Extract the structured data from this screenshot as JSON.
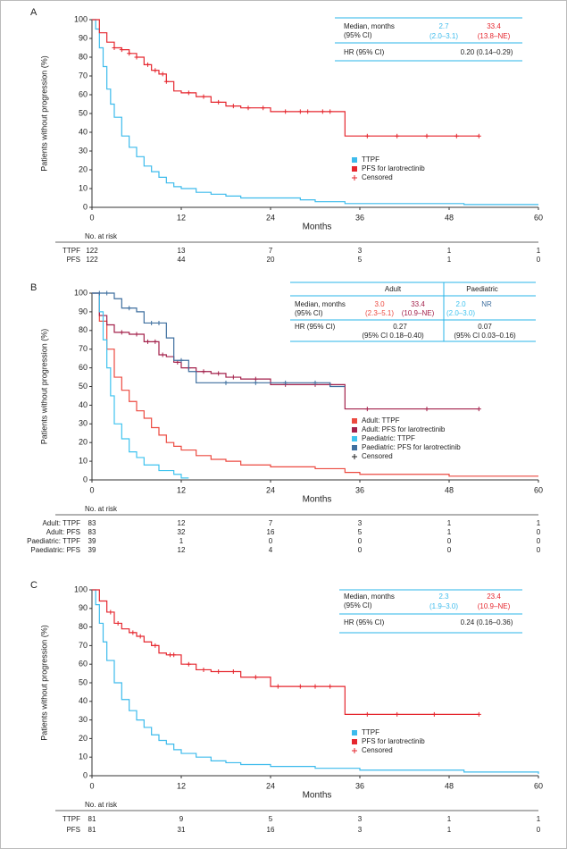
{
  "chart_data": [
    {
      "type": "line",
      "panel_label": "A",
      "ylabel": "Patients without progression (%)",
      "xlabel": "Months",
      "xlim": [
        0,
        60
      ],
      "xticks": [
        0,
        12,
        24,
        36,
        48,
        60
      ],
      "ylim": [
        0,
        100
      ],
      "yticks": [
        0,
        10,
        20,
        30,
        40,
        50,
        60,
        70,
        80,
        90,
        100
      ],
      "series": [
        {
          "name": "TTPF",
          "color": "#3dbbec",
          "x": [
            0,
            0.5,
            1,
            1.5,
            2,
            2.5,
            3,
            4,
            5,
            6,
            7,
            8,
            9,
            10,
            11,
            12,
            14,
            16,
            18,
            20,
            28,
            30,
            34,
            50,
            60
          ],
          "values": [
            100,
            95,
            85,
            75,
            63,
            55,
            48,
            38,
            32,
            27,
            22,
            19,
            16,
            13,
            11,
            10,
            8,
            7,
            6,
            5,
            4,
            3,
            2,
            1.5,
            1.5
          ]
        },
        {
          "name": "PFS for larotrectinib",
          "color": "#e5262e",
          "x": [
            0,
            1,
            2,
            3,
            4,
            5,
            6,
            7,
            8,
            9,
            10,
            11,
            12,
            14,
            16,
            18,
            20,
            24,
            34,
            52
          ],
          "values": [
            100,
            93,
            88,
            85,
            84,
            82,
            80,
            76,
            73,
            71,
            67,
            62,
            61,
            59,
            56,
            54,
            53,
            51,
            38,
            38
          ],
          "censored_x": [
            3,
            4,
            5,
            6,
            7.5,
            8.5,
            9.5,
            10,
            13,
            15,
            17,
            19,
            21,
            23,
            26,
            28,
            29,
            31,
            32,
            37,
            41,
            45,
            49,
            52
          ],
          "censored_values": [
            85,
            84,
            82,
            80,
            76,
            73,
            71,
            67,
            61,
            59,
            56,
            54,
            53,
            53,
            51,
            51,
            51,
            51,
            51,
            38,
            38,
            38,
            38,
            38
          ]
        }
      ],
      "censored_label": "Censored",
      "stats": [
        [
          "Median, months",
          "2.7",
          "33.4"
        ],
        [
          "(95% CI)",
          "(2.0–3.1)",
          "(13.8–NE)"
        ],
        [
          "HR (95% CI)",
          "0.20 (0.14–0.29)"
        ]
      ],
      "risk_table": {
        "title": "No. at risk",
        "rows": [
          {
            "label": "TTPF",
            "values": [
              122,
              13,
              7,
              3,
              1,
              1
            ]
          },
          {
            "label": "PFS",
            "values": [
              122,
              44,
              20,
              5,
              1,
              0
            ]
          }
        ]
      }
    },
    {
      "type": "line",
      "panel_label": "B",
      "ylabel": "Patients without progression (%)",
      "xlabel": "Months",
      "xlim": [
        0,
        60
      ],
      "xticks": [
        0,
        12,
        24,
        36,
        48,
        60
      ],
      "ylim": [
        0,
        100
      ],
      "yticks": [
        0,
        10,
        20,
        30,
        40,
        50,
        60,
        70,
        80,
        90,
        100
      ],
      "series": [
        {
          "name": "Adult: TTPF",
          "color": "#ec4a40",
          "x": [
            0,
            1,
            2,
            3,
            4,
            5,
            6,
            7,
            8,
            9,
            10,
            11,
            12,
            14,
            16,
            18,
            20,
            24,
            30,
            34,
            36,
            48,
            60
          ],
          "values": [
            100,
            85,
            70,
            55,
            48,
            42,
            37,
            33,
            28,
            24,
            20,
            18,
            16,
            13,
            11,
            10,
            8,
            7,
            6,
            4,
            3,
            2,
            2
          ]
        },
        {
          "name": "Adult: PFS for larotrectinib",
          "color": "#a3214b",
          "x": [
            0,
            1,
            2,
            3,
            5,
            7,
            9,
            10,
            11,
            12,
            14,
            16,
            18,
            20,
            24,
            34,
            52
          ],
          "values": [
            100,
            88,
            83,
            79,
            78,
            74,
            67,
            66,
            63,
            60,
            58,
            57,
            55,
            54,
            51,
            38,
            38
          ],
          "censored_x": [
            4,
            6,
            7.5,
            8.5,
            9.5,
            11.5,
            13,
            15,
            17,
            19,
            22,
            26,
            30,
            32,
            37,
            45,
            52
          ],
          "censored_values": [
            79,
            78,
            74,
            74,
            67,
            63,
            60,
            58,
            57,
            55,
            54,
            51,
            51,
            51,
            38,
            38,
            38
          ]
        },
        {
          "name": "Paediatric: TTPF",
          "color": "#3fc3ef",
          "x": [
            0,
            1,
            1.5,
            2,
            2.5,
            3,
            4,
            5,
            6,
            7,
            9,
            11,
            12,
            13
          ],
          "values": [
            100,
            90,
            75,
            60,
            45,
            30,
            22,
            15,
            12,
            8,
            5,
            3,
            1,
            1
          ]
        },
        {
          "name": "Paediatric: PFS for larotrectinib",
          "color": "#3e6f9f",
          "x": [
            0,
            3,
            4,
            6,
            7,
            10,
            11,
            13,
            14,
            32,
            34
          ],
          "values": [
            100,
            97,
            92,
            90,
            84,
            76,
            64,
            58,
            52,
            50,
            50
          ],
          "censored_x": [
            1,
            2,
            5,
            8,
            9,
            12,
            18,
            22,
            26,
            30
          ],
          "censored_values": [
            100,
            100,
            92,
            84,
            84,
            64,
            52,
            52,
            52,
            52
          ]
        }
      ],
      "censored_label": "Censored",
      "stats": [
        [
          "Adult",
          "Paediatric"
        ],
        [
          "Median, months",
          "3.0",
          "33.4",
          "2.0",
          "NR"
        ],
        [
          "(95% CI)",
          "(2.3–5.1)",
          "(10.9–NE)",
          "(2.0–3.0)"
        ],
        [
          "HR (95% CI)",
          "0.27",
          "0.07"
        ],
        [
          "(95% CI 0.18–0.40)",
          "(95% CI 0.03–0.16)"
        ]
      ],
      "risk_table": {
        "title": "No. at risk",
        "rows": [
          {
            "label": "Adult: TTPF",
            "values": [
              83,
              12,
              7,
              3,
              1,
              1
            ]
          },
          {
            "label": "Adult: PFS",
            "values": [
              83,
              32,
              16,
              5,
              1,
              0
            ]
          },
          {
            "label": "Paediatric: TTPF",
            "values": [
              39,
              1,
              0,
              0,
              0,
              0
            ]
          },
          {
            "label": "Paediatric: PFS",
            "values": [
              39,
              12,
              4,
              0,
              0,
              0
            ]
          }
        ]
      }
    },
    {
      "type": "line",
      "panel_label": "C",
      "ylabel": "Patients without progression (%)",
      "xlabel": "Months",
      "xlim": [
        0,
        60
      ],
      "xticks": [
        0,
        12,
        24,
        36,
        48,
        60
      ],
      "ylim": [
        0,
        100
      ],
      "yticks": [
        0,
        10,
        20,
        30,
        40,
        50,
        60,
        70,
        80,
        90,
        100
      ],
      "series": [
        {
          "name": "TTPF",
          "color": "#3dbbec",
          "x": [
            0,
            0.5,
            1,
            1.5,
            2,
            3,
            4,
            5,
            6,
            7,
            8,
            9,
            10,
            11,
            12,
            14,
            16,
            18,
            20,
            24,
            30,
            36,
            50,
            60
          ],
          "values": [
            100,
            92,
            82,
            72,
            62,
            50,
            41,
            35,
            30,
            26,
            22,
            19,
            17,
            14,
            12,
            10,
            8,
            7,
            6,
            5,
            4,
            3,
            2,
            1
          ]
        },
        {
          "name": "PFS for larotrectinib",
          "color": "#e5262e",
          "x": [
            0,
            1,
            2,
            3,
            4,
            5,
            6,
            7,
            8,
            9,
            10,
            12,
            14,
            16,
            20,
            24,
            34,
            52
          ],
          "values": [
            100,
            94,
            88,
            82,
            79,
            77,
            75,
            72,
            70,
            66,
            65,
            60,
            57,
            56,
            53,
            48,
            33,
            33
          ],
          "censored_x": [
            2.5,
            3.5,
            5.5,
            6.5,
            8.5,
            10.5,
            11,
            13,
            15,
            17,
            19,
            22,
            25,
            28,
            30,
            32,
            37,
            41,
            46,
            52
          ],
          "censored_values": [
            88,
            82,
            77,
            75,
            70,
            65,
            65,
            60,
            57,
            56,
            56,
            53,
            48,
            48,
            48,
            48,
            33,
            33,
            33,
            33
          ]
        }
      ],
      "censored_label": "Censored",
      "stats": [
        [
          "Median, months",
          "2.3",
          "23.4"
        ],
        [
          "(95% CI)",
          "(1.9–3.0)",
          "(10.9–NE)"
        ],
        [
          "HR (95% CI)",
          "0.24 (0.16–0.36)"
        ]
      ],
      "risk_table": {
        "title": "No. at risk",
        "rows": [
          {
            "label": "TTPF",
            "values": [
              81,
              9,
              5,
              3,
              1,
              1
            ]
          },
          {
            "label": "PFS",
            "values": [
              81,
              31,
              16,
              3,
              1,
              0
            ]
          }
        ]
      }
    }
  ]
}
